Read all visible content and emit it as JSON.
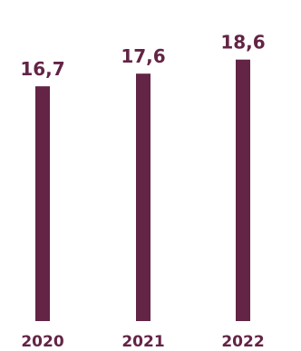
{
  "chart_data": {
    "type": "bar",
    "categories": [
      "2020",
      "2021",
      "2022"
    ],
    "values": [
      16.7,
      17.6,
      18.6
    ],
    "value_labels": [
      "16,7",
      "17,6",
      "18,6"
    ],
    "title": "",
    "xlabel": "",
    "ylabel": "",
    "grid": false,
    "legend": "none",
    "colors": {
      "bar": "#632445",
      "value_text": "#632445",
      "tick_text": "#632445"
    }
  }
}
